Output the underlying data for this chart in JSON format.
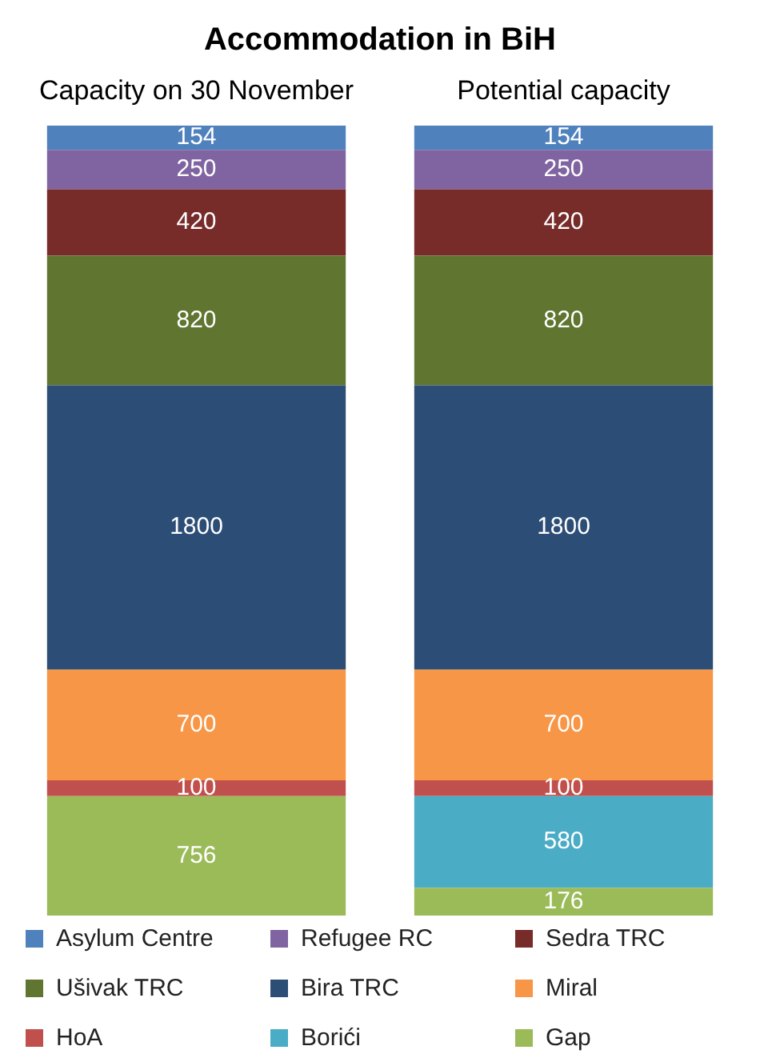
{
  "chart_data": {
    "type": "bar",
    "title": "Accommodation in BiH",
    "categories": [
      "Capacity on 30 November",
      "Potential capacity"
    ],
    "stacked": true,
    "data_labels": true,
    "legend": "bottom",
    "tick_labels": "x",
    "series": [
      {
        "name": "Gap",
        "color": "#9bbb59",
        "values": [
          756,
          176
        ]
      },
      {
        "name": "Borići",
        "color": "#4bacc6",
        "values": [
          null,
          580
        ]
      },
      {
        "name": "HoA",
        "color": "#c0504d",
        "values": [
          100,
          100
        ]
      },
      {
        "name": "Miral",
        "color": "#f79646",
        "values": [
          700,
          700
        ]
      },
      {
        "name": "Bira TRC",
        "color": "#2c4d75",
        "values": [
          1800,
          1800
        ]
      },
      {
        "name": "Ušivak TRC",
        "color": "#5f7530",
        "values": [
          820,
          820
        ]
      },
      {
        "name": "Sedra TRC",
        "color": "#772c2a",
        "values": [
          420,
          420
        ]
      },
      {
        "name": "Refugee RC",
        "color": "#8064a2",
        "values": [
          250,
          250
        ]
      },
      {
        "name": "Asylum Centre",
        "color": "#4f81bd",
        "values": [
          154,
          154
        ]
      }
    ]
  }
}
